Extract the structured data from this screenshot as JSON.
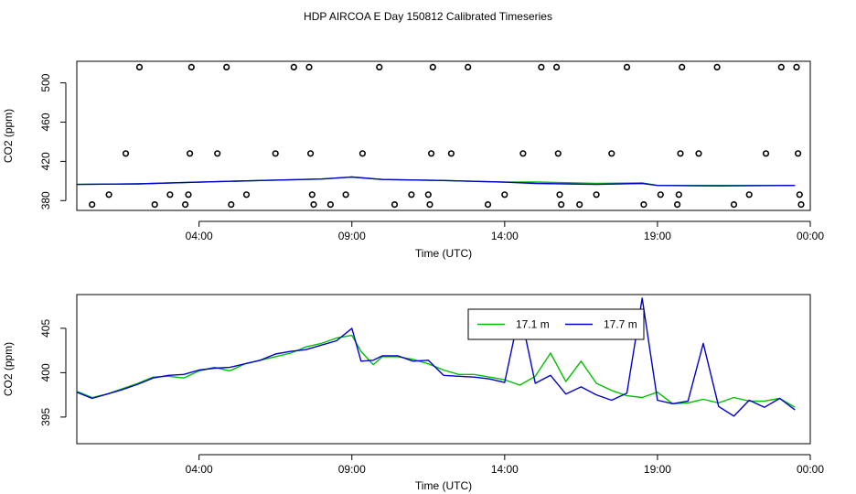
{
  "title": "HDP AIRCOA E  Day 150812  Calibrated Timeseries",
  "colors": {
    "green": "#00c000",
    "blue": "#0000cc",
    "frame": "#000000"
  },
  "chart_data": [
    {
      "type": "scatter",
      "xlabel": "Time (UTC)",
      "ylabel": "CO2 (ppm)",
      "xlim": [
        0.0,
        24.0
      ],
      "ylim": [
        370,
        522
      ],
      "xticks": [
        4,
        9,
        14,
        19,
        24
      ],
      "xtick_labels": [
        "04:00",
        "09:00",
        "14:00",
        "19:00",
        "00:00"
      ],
      "yticks": [
        380,
        420,
        460,
        500
      ],
      "ytick_labels": [
        "380",
        "420",
        "460",
        "500"
      ],
      "legend": "none",
      "points": [
        [
          0.5,
          376
        ],
        [
          1.05,
          386
        ],
        [
          1.6,
          428
        ],
        [
          2.05,
          516
        ],
        [
          2.55,
          376
        ],
        [
          3.05,
          386
        ],
        [
          3.55,
          376
        ],
        [
          3.65,
          386
        ],
        [
          3.7,
          428
        ],
        [
          3.75,
          516
        ],
        [
          4.6,
          428
        ],
        [
          4.9,
          516
        ],
        [
          5.05,
          376
        ],
        [
          5.55,
          386
        ],
        [
          6.5,
          428
        ],
        [
          7.1,
          516
        ],
        [
          7.6,
          516
        ],
        [
          7.65,
          428
        ],
        [
          7.7,
          386
        ],
        [
          7.75,
          376
        ],
        [
          8.3,
          376
        ],
        [
          8.8,
          386
        ],
        [
          9.35,
          428
        ],
        [
          9.9,
          516
        ],
        [
          10.4,
          376
        ],
        [
          10.95,
          386
        ],
        [
          11.5,
          386
        ],
        [
          11.55,
          376
        ],
        [
          11.6,
          428
        ],
        [
          11.65,
          516
        ],
        [
          12.25,
          428
        ],
        [
          12.8,
          516
        ],
        [
          13.45,
          376
        ],
        [
          14.0,
          386
        ],
        [
          14.6,
          428
        ],
        [
          15.2,
          516
        ],
        [
          15.7,
          516
        ],
        [
          15.75,
          428
        ],
        [
          15.8,
          386
        ],
        [
          15.85,
          376
        ],
        [
          16.45,
          376
        ],
        [
          17.0,
          386
        ],
        [
          17.5,
          428
        ],
        [
          18.0,
          516
        ],
        [
          18.55,
          376
        ],
        [
          19.1,
          386
        ],
        [
          19.65,
          376
        ],
        [
          19.7,
          386
        ],
        [
          19.75,
          428
        ],
        [
          19.8,
          516
        ],
        [
          20.35,
          428
        ],
        [
          20.95,
          516
        ],
        [
          21.5,
          376
        ],
        [
          22.0,
          386
        ],
        [
          22.55,
          428
        ],
        [
          23.05,
          516
        ],
        [
          23.55,
          516
        ],
        [
          23.6,
          428
        ],
        [
          23.65,
          386
        ],
        [
          23.7,
          376
        ]
      ],
      "series": [
        {
          "values": [
            [
              0.0,
              396.5
            ],
            [
              2.0,
              397
            ],
            [
              4.0,
              398.8
            ],
            [
              6.0,
              400.5
            ],
            [
              8.0,
              402
            ],
            [
              9.0,
              404
            ],
            [
              10.0,
              401.5
            ],
            [
              12.0,
              400.5
            ],
            [
              14.0,
              398.8
            ],
            [
              15.0,
              399
            ],
            [
              17.0,
              397.5
            ],
            [
              18.5,
              398
            ],
            [
              19.0,
              395.5
            ],
            [
              21.0,
              395.5
            ],
            [
              23.5,
              395.5
            ]
          ]
        },
        {
          "values": [
            [
              0.0,
              396.5
            ],
            [
              2.0,
              397
            ],
            [
              4.0,
              398.8
            ],
            [
              6.0,
              400.5
            ],
            [
              8.0,
              402
            ],
            [
              9.0,
              404
            ],
            [
              10.0,
              401.5
            ],
            [
              12.0,
              400.5
            ],
            [
              14.0,
              398.8
            ],
            [
              15.0,
              397.5
            ],
            [
              17.0,
              396.5
            ],
            [
              18.5,
              397.5
            ],
            [
              19.0,
              395.5
            ],
            [
              21.0,
              395
            ],
            [
              23.5,
              395.5
            ]
          ]
        }
      ]
    },
    {
      "type": "line",
      "xlabel": "Time (UTC)",
      "ylabel": "CO2 (ppm)",
      "xlim": [
        0.0,
        24.0
      ],
      "ylim": [
        392.0,
        408.8
      ],
      "xticks": [
        4,
        9,
        14,
        19,
        24
      ],
      "xtick_labels": [
        "04:00",
        "09:00",
        "14:00",
        "19:00",
        "00:00"
      ],
      "yticks": [
        395,
        400,
        405
      ],
      "ytick_labels": [
        "395",
        "400",
        "405"
      ],
      "legend": "top-center",
      "series": [
        {
          "name": "17.1 m",
          "color": "#00c000",
          "values": [
            [
              0.0,
              397.9
            ],
            [
              0.5,
              397.2
            ],
            [
              1.0,
              397.6
            ],
            [
              1.5,
              398.2
            ],
            [
              2.0,
              398.8
            ],
            [
              2.5,
              399.5
            ],
            [
              3.0,
              399.6
            ],
            [
              3.5,
              399.4
            ],
            [
              4.0,
              400.2
            ],
            [
              4.5,
              400.6
            ],
            [
              5.0,
              400.2
            ],
            [
              5.5,
              401.0
            ],
            [
              6.0,
              401.4
            ],
            [
              6.5,
              401.8
            ],
            [
              7.0,
              402.2
            ],
            [
              7.5,
              402.9
            ],
            [
              8.0,
              403.3
            ],
            [
              8.5,
              403.9
            ],
            [
              9.0,
              404.2
            ],
            [
              9.3,
              402.4
            ],
            [
              9.7,
              400.9
            ],
            [
              10.0,
              401.8
            ],
            [
              10.5,
              401.8
            ],
            [
              11.0,
              401.5
            ],
            [
              11.5,
              401.0
            ],
            [
              12.0,
              400.3
            ],
            [
              12.5,
              399.8
            ],
            [
              13.0,
              399.8
            ],
            [
              13.5,
              399.5
            ],
            [
              14.0,
              399.2
            ],
            [
              14.5,
              398.6
            ],
            [
              15.0,
              399.6
            ],
            [
              15.5,
              402.2
            ],
            [
              16.0,
              399.0
            ],
            [
              16.5,
              401.3
            ],
            [
              17.0,
              398.8
            ],
            [
              17.5,
              398.0
            ],
            [
              18.0,
              397.4
            ],
            [
              18.5,
              397.2
            ],
            [
              19.0,
              397.8
            ],
            [
              19.5,
              396.5
            ],
            [
              20.0,
              396.6
            ],
            [
              20.5,
              397.0
            ],
            [
              21.0,
              396.6
            ],
            [
              21.5,
              397.2
            ],
            [
              22.0,
              396.8
            ],
            [
              22.5,
              396.8
            ],
            [
              23.0,
              397.1
            ],
            [
              23.5,
              396.1
            ]
          ]
        },
        {
          "name": "17.7 m",
          "color": "#0000cc",
          "values": [
            [
              0.0,
              397.8
            ],
            [
              0.5,
              397.1
            ],
            [
              1.0,
              397.6
            ],
            [
              1.5,
              398.1
            ],
            [
              2.0,
              398.7
            ],
            [
              2.5,
              399.4
            ],
            [
              3.0,
              399.7
            ],
            [
              3.5,
              399.8
            ],
            [
              4.0,
              400.3
            ],
            [
              4.5,
              400.5
            ],
            [
              5.0,
              400.6
            ],
            [
              5.5,
              401.0
            ],
            [
              6.0,
              401.4
            ],
            [
              6.5,
              402.1
            ],
            [
              7.0,
              402.4
            ],
            [
              7.5,
              402.6
            ],
            [
              8.0,
              403.1
            ],
            [
              8.5,
              403.6
            ],
            [
              9.0,
              405.0
            ],
            [
              9.3,
              401.3
            ],
            [
              9.7,
              401.4
            ],
            [
              10.0,
              401.9
            ],
            [
              10.5,
              401.9
            ],
            [
              11.0,
              401.3
            ],
            [
              11.5,
              401.4
            ],
            [
              12.0,
              399.7
            ],
            [
              12.5,
              399.6
            ],
            [
              13.0,
              399.5
            ],
            [
              13.5,
              399.3
            ],
            [
              14.0,
              398.9
            ],
            [
              14.5,
              407.0
            ],
            [
              15.0,
              398.8
            ],
            [
              15.5,
              399.7
            ],
            [
              16.0,
              397.6
            ],
            [
              16.5,
              398.4
            ],
            [
              17.0,
              397.5
            ],
            [
              17.5,
              396.9
            ],
            [
              18.0,
              397.7
            ],
            [
              18.5,
              408.4
            ],
            [
              19.0,
              396.9
            ],
            [
              19.5,
              396.5
            ],
            [
              20.0,
              396.8
            ],
            [
              20.5,
              403.3
            ],
            [
              21.0,
              396.2
            ],
            [
              21.5,
              395.1
            ],
            [
              22.0,
              396.9
            ],
            [
              22.5,
              396.1
            ],
            [
              23.0,
              397.1
            ],
            [
              23.5,
              395.8
            ]
          ]
        }
      ]
    }
  ]
}
